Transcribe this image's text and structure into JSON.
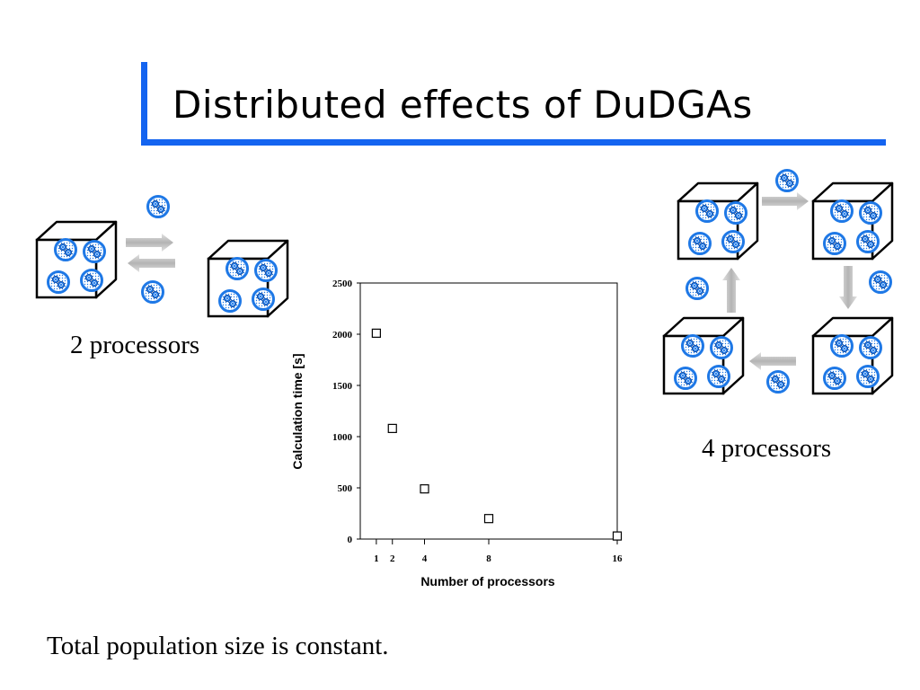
{
  "title": "Distributed effects of DuDGAs",
  "labels": {
    "two_processors": "2 processors",
    "four_processors": "4 processors",
    "footer": "Total population size is constant."
  },
  "colors": {
    "accent": "#1464f0",
    "circle": "#1e78e6"
  },
  "chart_data": {
    "type": "scatter",
    "xlabel": "Number of processors",
    "ylabel": "Calculation time [s]",
    "x_ticks": [
      1,
      2,
      4,
      8,
      16
    ],
    "y_ticks": [
      0,
      500,
      1000,
      1500,
      2000,
      2500
    ],
    "xlim": [
      0,
      16
    ],
    "ylim": [
      0,
      2500
    ],
    "grid": false,
    "marker": "open-square",
    "points": [
      {
        "x": 1,
        "y": 2010
      },
      {
        "x": 2,
        "y": 1080
      },
      {
        "x": 4,
        "y": 490
      },
      {
        "x": 8,
        "y": 200
      },
      {
        "x": 16,
        "y": 30
      }
    ]
  }
}
